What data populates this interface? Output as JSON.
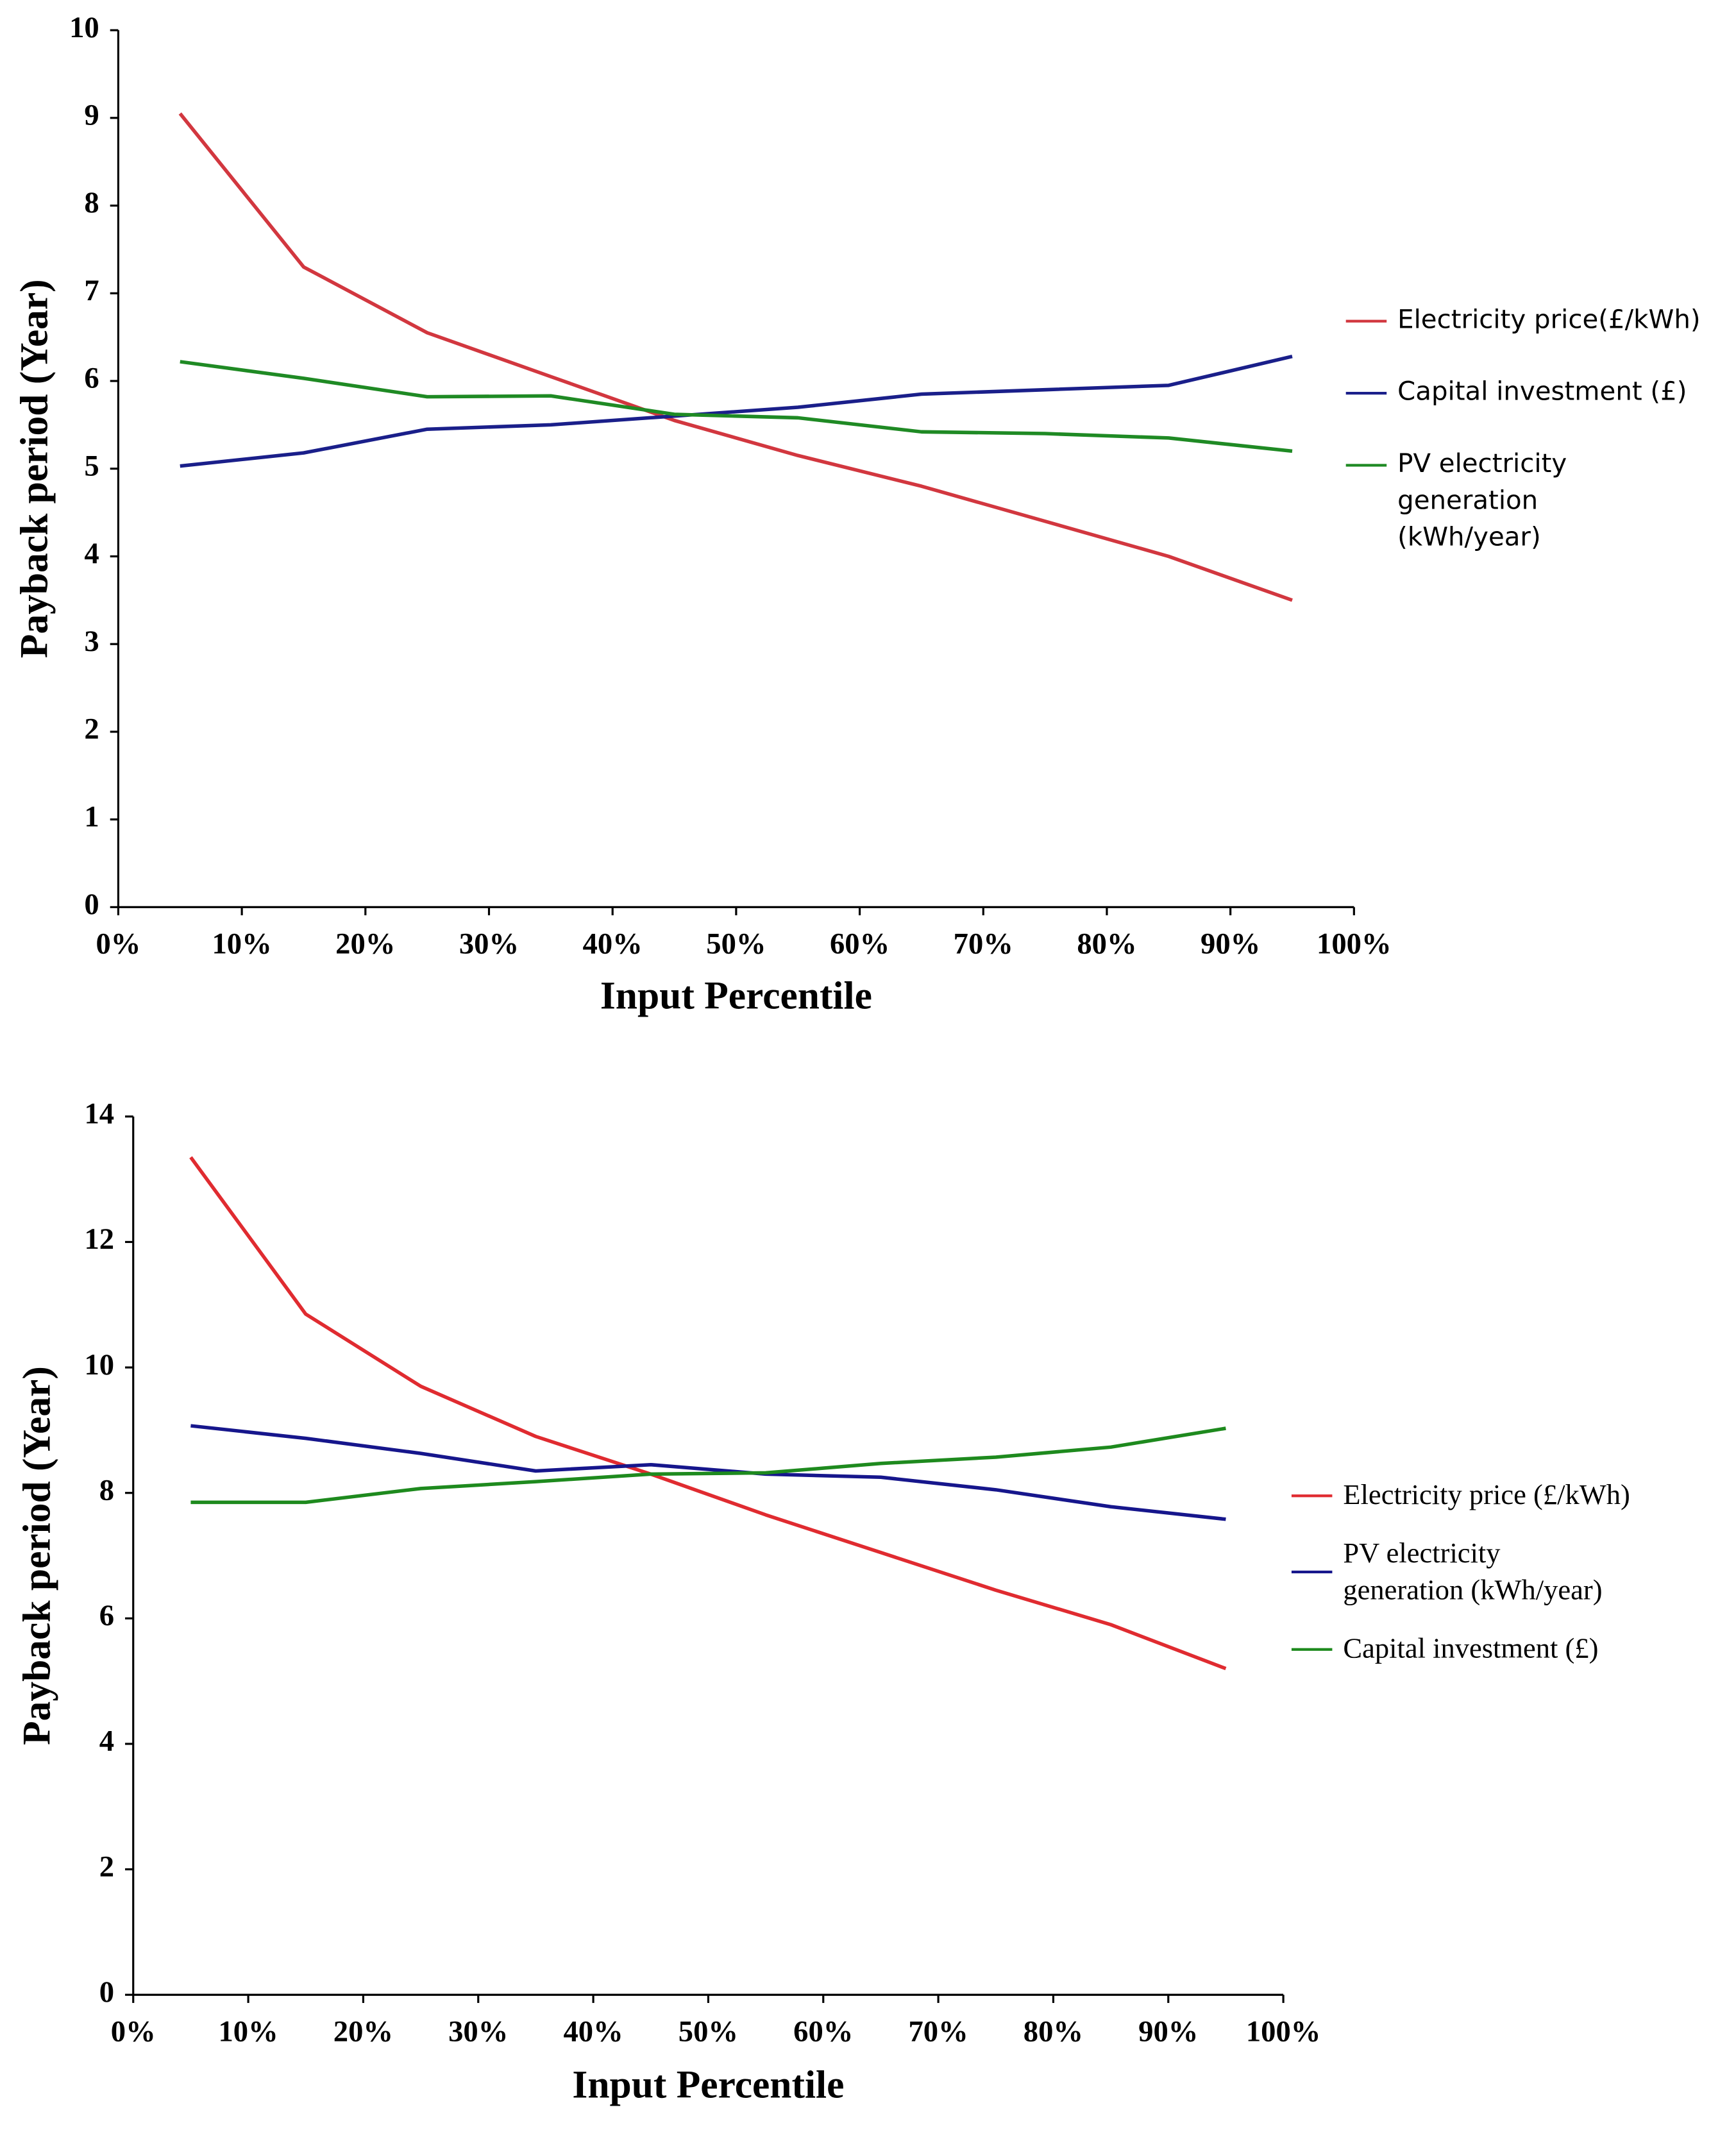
{
  "chart_data": [
    {
      "type": "line",
      "x_label": "Input Percentile",
      "y_label": "Payback period (Year)",
      "x": [
        5,
        15,
        25,
        35,
        45,
        55,
        65,
        75,
        85,
        95
      ],
      "xlim": [
        0,
        100
      ],
      "xticks": [
        {
          "value": 0,
          "label": "0%"
        },
        {
          "value": 10,
          "label": "10%"
        },
        {
          "value": 20,
          "label": "20%"
        },
        {
          "value": 30,
          "label": "30%"
        },
        {
          "value": 40,
          "label": "40%"
        },
        {
          "value": 50,
          "label": "50%"
        },
        {
          "value": 60,
          "label": "60%"
        },
        {
          "value": 70,
          "label": "70%"
        },
        {
          "value": 80,
          "label": "80%"
        },
        {
          "value": 90,
          "label": "90%"
        },
        {
          "value": 100,
          "label": "100%"
        }
      ],
      "ylim": [
        0,
        10
      ],
      "yticks": [
        0,
        1,
        2,
        3,
        4,
        5,
        6,
        7,
        8,
        9,
        10
      ],
      "series": [
        {
          "name": "Electricity price(£/kWh)",
          "color": "#d2373f",
          "values": [
            9.05,
            7.3,
            6.55,
            6.05,
            5.55,
            5.15,
            4.8,
            4.4,
            4.0,
            3.5
          ]
        },
        {
          "name": "Capital investment (£)",
          "color": "#1a1f8a",
          "values": [
            5.03,
            5.18,
            5.45,
            5.5,
            5.6,
            5.7,
            5.85,
            5.9,
            5.95,
            6.28
          ]
        },
        {
          "name": "PV electricity generation (kWh/year)",
          "color": "#1f8a24",
          "values": [
            6.22,
            6.03,
            5.82,
            5.83,
            5.62,
            5.58,
            5.42,
            5.4,
            5.35,
            5.2
          ]
        }
      ]
    },
    {
      "type": "line",
      "x_label": "Input Percentile",
      "y_label": "Payback period (Year)",
      "x": [
        5,
        15,
        25,
        35,
        45,
        55,
        65,
        75,
        85,
        95
      ],
      "xlim": [
        0,
        100
      ],
      "xticks": [
        {
          "value": 0,
          "label": "0%"
        },
        {
          "value": 10,
          "label": "10%"
        },
        {
          "value": 20,
          "label": "20%"
        },
        {
          "value": 30,
          "label": "30%"
        },
        {
          "value": 40,
          "label": "40%"
        },
        {
          "value": 50,
          "label": "50%"
        },
        {
          "value": 60,
          "label": "60%"
        },
        {
          "value": 70,
          "label": "70%"
        },
        {
          "value": 80,
          "label": "80%"
        },
        {
          "value": 90,
          "label": "90%"
        },
        {
          "value": 100,
          "label": "100%"
        }
      ],
      "ylim": [
        0,
        14
      ],
      "yticks": [
        0,
        2,
        4,
        6,
        8,
        10,
        12,
        14
      ],
      "series": [
        {
          "name": "Electricity price (£/kWh)",
          "color": "#e02b30",
          "values": [
            13.35,
            10.85,
            9.7,
            8.9,
            8.3,
            7.65,
            7.05,
            6.45,
            5.9,
            5.2
          ]
        },
        {
          "name": "PV electricity generation (kWh/year)",
          "color": "#16168c",
          "values": [
            9.07,
            8.87,
            8.63,
            8.35,
            8.45,
            8.3,
            8.25,
            8.05,
            7.78,
            7.58
          ]
        },
        {
          "name": "Capital investment (£)",
          "color": "#1e8a1e",
          "values": [
            7.85,
            7.85,
            8.07,
            8.18,
            8.3,
            8.32,
            8.47,
            8.57,
            8.73,
            9.03
          ]
        }
      ]
    }
  ]
}
